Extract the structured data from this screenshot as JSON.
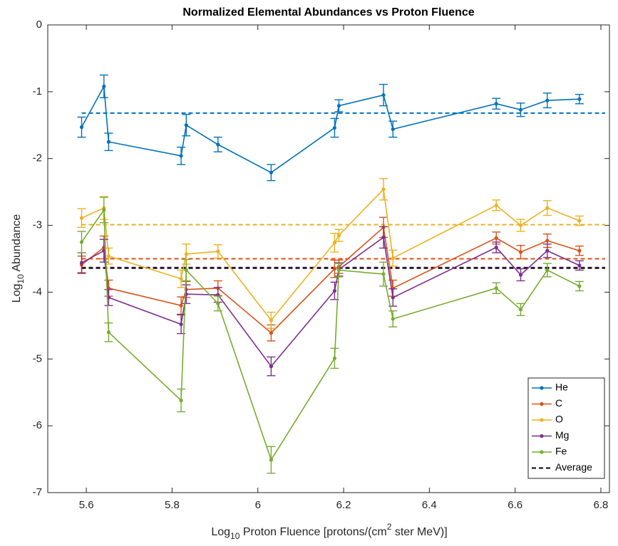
{
  "chart_data": {
    "type": "line",
    "title": "Normalized Elemental Abundances vs Proton Fluence",
    "xlabel": {
      "prefix": "Log",
      "sub": "10",
      "text": " Proton Fluence [protons/(cm",
      "sup": "2",
      "suffix": " ster MeV)]"
    },
    "ylabel": {
      "prefix": "Log",
      "sub": "10",
      "text": " Abundance"
    },
    "x": [
      5.589,
      5.641,
      5.652,
      5.821,
      5.833,
      5.907,
      6.031,
      6.179,
      6.189,
      6.293,
      6.315,
      6.556,
      6.613,
      6.675,
      6.75
    ],
    "series": [
      {
        "name": "He",
        "color": "#0072bd",
        "average": -1.32,
        "values": [
          -1.53,
          -0.92,
          -1.75,
          -1.96,
          -1.5,
          -1.79,
          -2.21,
          -1.54,
          -1.21,
          -1.05,
          -1.56,
          -1.18,
          -1.27,
          -1.13,
          -1.11
        ],
        "errors": [
          0.15,
          0.17,
          0.13,
          0.13,
          0.16,
          0.11,
          0.12,
          0.14,
          0.09,
          0.16,
          0.12,
          0.08,
          0.1,
          0.11,
          0.07
        ]
      },
      {
        "name": "C",
        "color": "#d95319",
        "average": -3.5,
        "values": [
          -3.59,
          -3.33,
          -3.94,
          -4.2,
          -3.96,
          -3.94,
          -4.61,
          -3.65,
          -3.62,
          -3.03,
          -3.94,
          -3.19,
          -3.4,
          -3.23,
          -3.38
        ],
        "errors": [
          0.13,
          0.17,
          0.12,
          0.13,
          0.12,
          0.11,
          0.12,
          0.13,
          0.1,
          0.15,
          0.12,
          0.09,
          0.1,
          0.1,
          0.07
        ]
      },
      {
        "name": "O",
        "color": "#edb120",
        "average": -2.99,
        "values": [
          -2.89,
          -2.74,
          -3.46,
          -3.8,
          -3.43,
          -3.39,
          -4.42,
          -3.26,
          -3.15,
          -2.46,
          -3.49,
          -2.7,
          -3.0,
          -2.74,
          -2.93
        ],
        "errors": [
          0.14,
          0.17,
          0.12,
          0.13,
          0.15,
          0.1,
          0.12,
          0.14,
          0.09,
          0.16,
          0.12,
          0.08,
          0.09,
          0.11,
          0.07
        ]
      },
      {
        "name": "Mg",
        "color": "#7e2f8e",
        "average": -3.63,
        "values": [
          -3.56,
          -3.38,
          -4.08,
          -4.48,
          -4.03,
          -4.04,
          -5.11,
          -3.98,
          -3.66,
          -3.18,
          -4.08,
          -3.33,
          -3.74,
          -3.38,
          -3.6
        ],
        "errors": [
          0.15,
          0.17,
          0.12,
          0.14,
          0.14,
          0.11,
          0.14,
          0.13,
          0.1,
          0.16,
          0.13,
          0.08,
          0.09,
          0.1,
          0.07
        ]
      },
      {
        "name": "Fe",
        "color": "#77ac30",
        "average": -3.64,
        "values": [
          -3.25,
          -2.77,
          -4.6,
          -5.62,
          -3.67,
          -4.17,
          -6.51,
          -4.99,
          -3.67,
          -3.73,
          -4.4,
          -3.94,
          -4.26,
          -3.67,
          -3.91
        ],
        "errors": [
          0.16,
          0.19,
          0.14,
          0.17,
          0.16,
          0.11,
          0.2,
          0.15,
          0.1,
          0.18,
          0.12,
          0.08,
          0.09,
          0.1,
          0.07
        ]
      }
    ],
    "overall_average": {
      "name": "Average",
      "color": "#000000",
      "value": -3.64
    },
    "xlim": [
      5.51,
      6.82
    ],
    "ylim": [
      -7,
      0
    ],
    "xticks": [
      5.6,
      5.8,
      6,
      6.2,
      6.4,
      6.6,
      6.8
    ],
    "yticks": [
      0,
      -1,
      -2,
      -3,
      -4,
      -5,
      -6,
      -7
    ],
    "legend": "lower right"
  }
}
